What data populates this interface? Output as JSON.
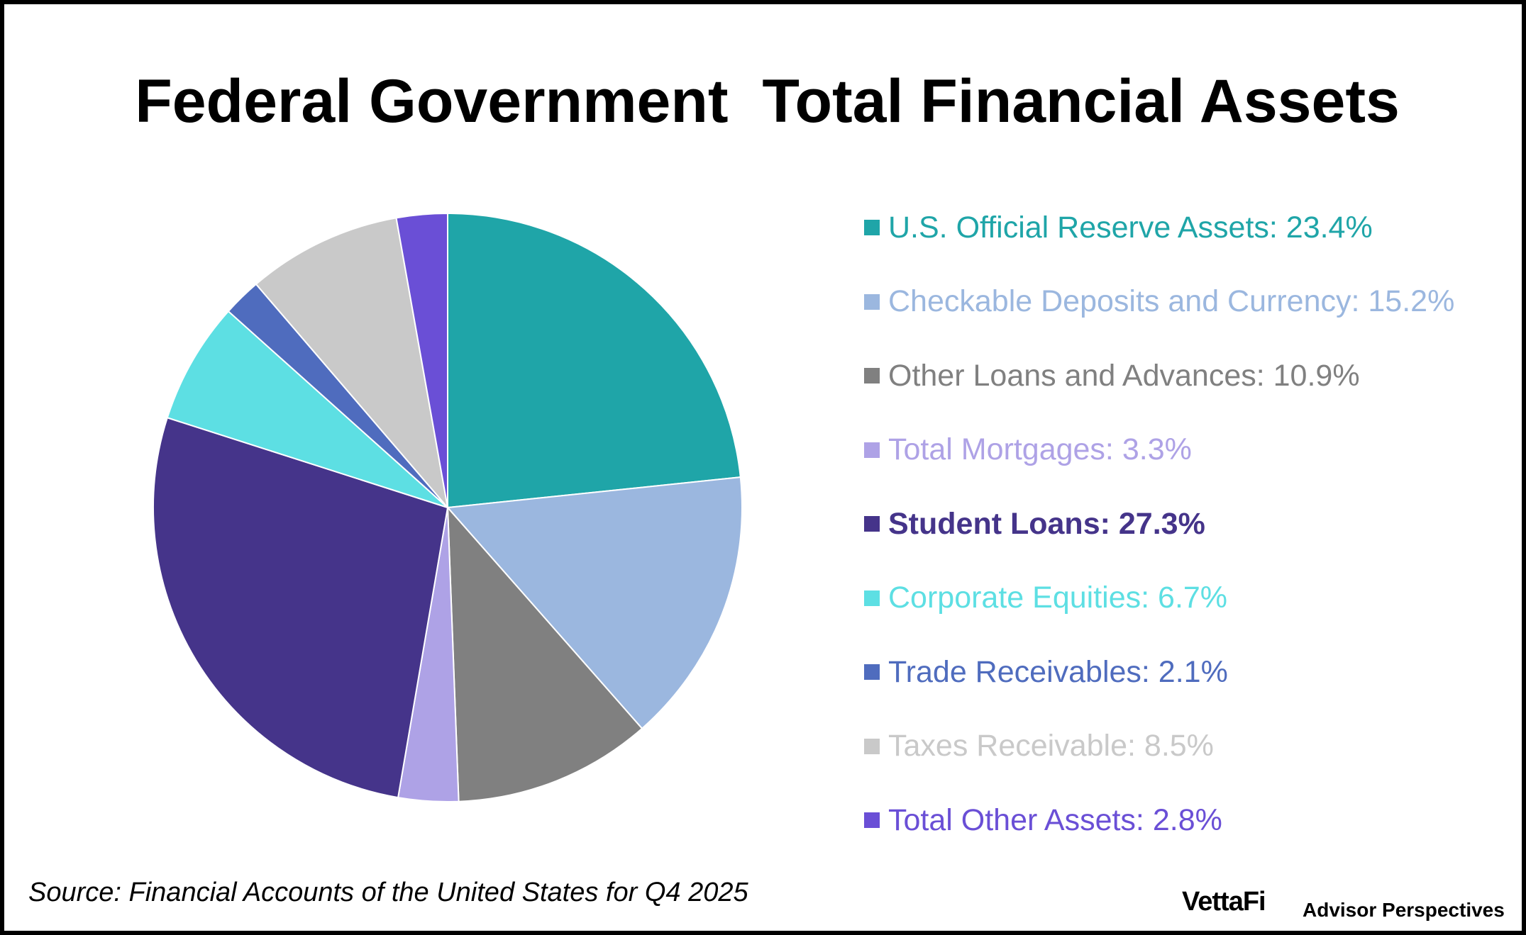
{
  "title": "Federal Government  Total Financial Assets",
  "source": "Source: Financial Accounts of the United States for Q4 2025",
  "branding": {
    "logo_text": "VettaFi",
    "tagline": "Advisor Perspectives"
  },
  "chart_data": {
    "type": "pie",
    "title": "Federal Government  Total Financial Assets",
    "start_angle": "12 o'clock",
    "direction": "clockwise",
    "legend_placement": "right",
    "slices": [
      {
        "label": "U.S. Official Reserve Assets: 23.4%",
        "value": 23.4,
        "color": "#1fa5a8",
        "bold": false
      },
      {
        "label": "Checkable Deposits and Currency: 15.2%",
        "value": 15.2,
        "color": "#9bb7df",
        "bold": false
      },
      {
        "label": "Other Loans and Advances: 10.9%",
        "value": 10.9,
        "color": "#808080",
        "bold": false
      },
      {
        "label": "Total Mortgages: 3.3%",
        "value": 3.3,
        "color": "#aea2e6",
        "bold": false
      },
      {
        "label": "Student Loans: 27.3%",
        "value": 27.3,
        "color": "#45348a",
        "bold": true
      },
      {
        "label": "Corporate Equities: 6.7%",
        "value": 6.7,
        "color": "#5ddfe3",
        "bold": false
      },
      {
        "label": "Trade Receivables: 2.1%",
        "value": 2.1,
        "color": "#4f6cbe",
        "bold": false
      },
      {
        "label": "Taxes Receivable: 8.5%",
        "value": 8.5,
        "color": "#c9c9c9",
        "bold": false
      },
      {
        "label": "Total Other Assets: 2.8%",
        "value": 2.8,
        "color": "#6a4fd6",
        "bold": false
      }
    ]
  }
}
